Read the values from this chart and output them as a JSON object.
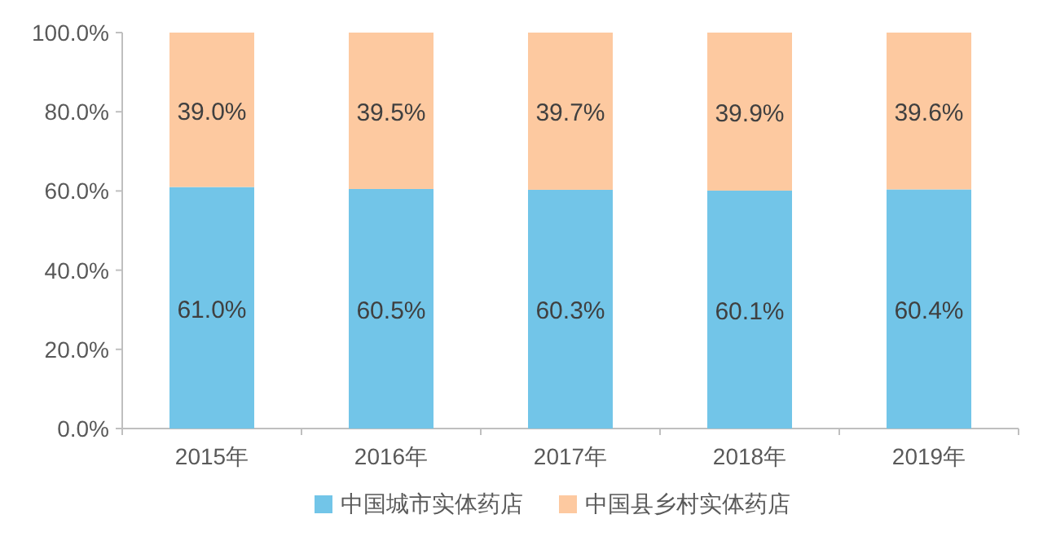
{
  "chart_data": {
    "type": "bar",
    "stacked": true,
    "legend": "bottom",
    "categories": [
      "2015年",
      "2016年",
      "2017年",
      "2018年",
      "2019年"
    ],
    "ylim": [
      0,
      100
    ],
    "yticks": [
      {
        "value": 0,
        "label": "0.0%"
      },
      {
        "value": 20,
        "label": "20.0%"
      },
      {
        "value": 40,
        "label": "40.0%"
      },
      {
        "value": 60,
        "label": "60.0%"
      },
      {
        "value": 80,
        "label": "80.0%"
      },
      {
        "value": 100,
        "label": "100.0%"
      }
    ],
    "series": [
      {
        "name": "中国城市实体药店",
        "color": "#72c5e8",
        "values": [
          61.0,
          60.5,
          60.3,
          60.1,
          60.4
        ],
        "value_labels": [
          "61.0%",
          "60.5%",
          "60.3%",
          "60.1%",
          "60.4%"
        ]
      },
      {
        "name": "中国县乡村实体药店",
        "color": "#fdc9a0",
        "values": [
          39.0,
          39.5,
          39.7,
          39.9,
          39.6
        ],
        "value_labels": [
          "39.0%",
          "39.5%",
          "39.7%",
          "39.9%",
          "39.6%"
        ]
      }
    ]
  }
}
